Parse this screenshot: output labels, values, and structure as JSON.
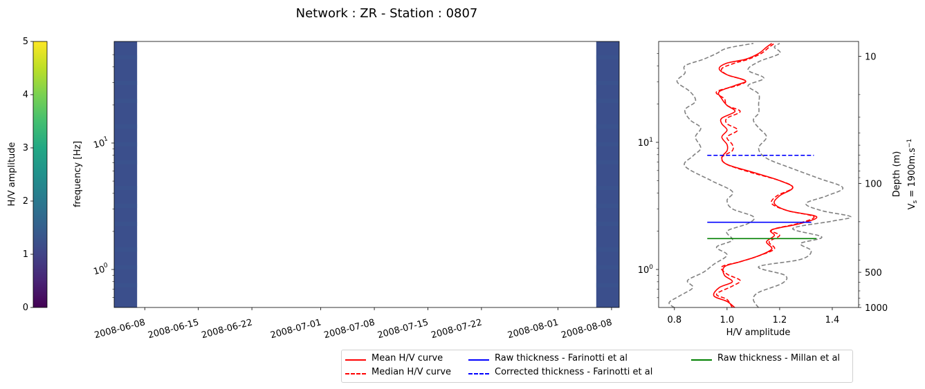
{
  "title": "Network : ZR - Station : 0807",
  "colors": {
    "mean": "#ff0000",
    "median": "#ff0000",
    "std": "#808080",
    "farinotti_raw": "#0000ff",
    "farinotti_corr": "#0000ff",
    "millan_raw": "#008000",
    "data_fill": "#3b4f8c"
  },
  "colorbar": {
    "label": "H/V amplitude",
    "ticks": [
      "0",
      "1",
      "2",
      "3",
      "4",
      "5"
    ],
    "range": [
      0,
      5
    ],
    "colormap": "viridis"
  },
  "spectrogram": {
    "ylabel": "frequency [Hz]",
    "ytick_major": [
      "10^0",
      "10^1"
    ],
    "ytick_base": "10",
    "ytick_exp": [
      "0",
      "1"
    ],
    "yscale": "log",
    "xticks": [
      "2008-06-08",
      "2008-06-15",
      "2008-06-22",
      "2008-07-01",
      "2008-07-08",
      "2008-07-15",
      "2008-07-22",
      "2008-08-01",
      "2008-08-08"
    ],
    "xlim": [
      "2008-06-04",
      "2008-08-09"
    ],
    "data_intervals": [
      [
        "2008-06-04",
        "2008-06-07"
      ],
      [
        "2008-08-06",
        "2008-08-09"
      ]
    ],
    "approx_hv_value": 1.0
  },
  "hv_panel": {
    "xlabel": "H/V amplitude",
    "xticks": [
      "0.8",
      "1.0",
      "1.2",
      "1.4"
    ],
    "xlim": [
      0.74,
      1.5
    ],
    "ylim_hz": [
      0.5,
      60
    ],
    "right_axis_label": "Depth (m)",
    "right_axis_label2_pre": "V",
    "right_axis_label2_sub": "s",
    "right_axis_label2_post": " = 1900m.s",
    "right_axis_label2_sup": "−1",
    "depth_ticks": [
      "10",
      "100",
      "500",
      "1000"
    ],
    "depth_tick_values": [
      10,
      100,
      500,
      1000
    ]
  },
  "legend": {
    "mean": "Mean H/V curve",
    "median": "Median H/V curve",
    "farinotti_raw": "Raw thickness - Farinotti et al",
    "farinotti_corr": "Corrected thickness - Farinotti et al",
    "millan_raw": "Raw thickness - Millan et al"
  },
  "chart_data": {
    "type": "line",
    "x_label": "H/V amplitude",
    "y_label": "frequency [Hz]",
    "y_scale": "log",
    "series": [
      {
        "name": "Mean H/V curve",
        "style": "solid",
        "points": [
          [
            1.03,
            0.5
          ],
          [
            1.0,
            0.56
          ],
          [
            0.95,
            0.62
          ],
          [
            0.97,
            0.72
          ],
          [
            1.02,
            0.8
          ],
          [
            0.99,
            0.9
          ],
          [
            0.99,
            1.05
          ],
          [
            1.05,
            1.15
          ],
          [
            1.12,
            1.28
          ],
          [
            1.17,
            1.45
          ],
          [
            1.15,
            1.65
          ],
          [
            1.18,
            1.85
          ],
          [
            1.17,
            2.05
          ],
          [
            1.28,
            2.3
          ],
          [
            1.34,
            2.6
          ],
          [
            1.23,
            2.9
          ],
          [
            1.18,
            3.3
          ],
          [
            1.2,
            3.8
          ],
          [
            1.25,
            4.4
          ],
          [
            1.2,
            5.0
          ],
          [
            1.1,
            5.8
          ],
          [
            1.0,
            6.7
          ],
          [
            0.98,
            7.6
          ],
          [
            1.0,
            8.6
          ],
          [
            1.0,
            9.6
          ],
          [
            0.98,
            11.0
          ],
          [
            1.0,
            12.5
          ],
          [
            0.98,
            14.0
          ],
          [
            0.98,
            15.5
          ],
          [
            1.03,
            17.5
          ],
          [
            1.0,
            19.5
          ],
          [
            0.98,
            22.0
          ],
          [
            0.97,
            25.0
          ],
          [
            1.03,
            28.0
          ],
          [
            1.07,
            30.5
          ],
          [
            1.0,
            34.0
          ],
          [
            0.97,
            38.0
          ],
          [
            1.0,
            42.0
          ],
          [
            1.07,
            45.0
          ],
          [
            1.12,
            50.0
          ],
          [
            1.15,
            56.0
          ],
          [
            1.17,
            60.0
          ]
        ]
      },
      {
        "name": "Median H/V curve",
        "style": "dashed",
        "points": [
          [
            1.02,
            0.5
          ],
          [
            1.0,
            0.58
          ],
          [
            0.96,
            0.64
          ],
          [
            1.02,
            0.74
          ],
          [
            1.05,
            0.82
          ],
          [
            1.0,
            0.92
          ],
          [
            0.98,
            1.05
          ],
          [
            1.05,
            1.15
          ],
          [
            1.12,
            1.28
          ],
          [
            1.18,
            1.45
          ],
          [
            1.16,
            1.65
          ],
          [
            1.2,
            1.85
          ],
          [
            1.17,
            2.05
          ],
          [
            1.27,
            2.3
          ],
          [
            1.33,
            2.6
          ],
          [
            1.23,
            2.9
          ],
          [
            1.17,
            3.3
          ],
          [
            1.19,
            3.8
          ],
          [
            1.25,
            4.4
          ],
          [
            1.2,
            5.0
          ],
          [
            1.09,
            5.8
          ],
          [
            1.0,
            6.7
          ],
          [
            0.98,
            7.6
          ],
          [
            1.02,
            8.6
          ],
          [
            1.02,
            9.6
          ],
          [
            1.0,
            11.0
          ],
          [
            1.04,
            12.5
          ],
          [
            1.0,
            14.0
          ],
          [
            1.0,
            15.5
          ],
          [
            1.05,
            17.5
          ],
          [
            1.0,
            19.5
          ],
          [
            0.99,
            22.0
          ],
          [
            0.96,
            25.0
          ],
          [
            1.04,
            28.0
          ],
          [
            1.07,
            30.5
          ],
          [
            1.0,
            34.0
          ],
          [
            0.98,
            38.0
          ],
          [
            1.03,
            42.0
          ],
          [
            1.08,
            45.0
          ],
          [
            1.13,
            50.0
          ],
          [
            1.16,
            56.0
          ],
          [
            1.18,
            60.0
          ]
        ]
      },
      {
        "name": "Std lower",
        "style": "dashed",
        "points": [
          [
            0.8,
            0.5
          ],
          [
            0.78,
            0.55
          ],
          [
            0.82,
            0.62
          ],
          [
            0.87,
            0.72
          ],
          [
            0.85,
            0.82
          ],
          [
            0.91,
            0.95
          ],
          [
            0.95,
            1.1
          ],
          [
            1.0,
            1.3
          ],
          [
            0.96,
            1.5
          ],
          [
            1.02,
            1.7
          ],
          [
            1.0,
            2.0
          ],
          [
            1.08,
            2.3
          ],
          [
            1.1,
            2.6
          ],
          [
            1.02,
            3.0
          ],
          [
            1.0,
            3.5
          ],
          [
            1.02,
            4.1
          ],
          [
            0.94,
            5.0
          ],
          [
            0.84,
            6.5
          ],
          [
            0.87,
            7.8
          ],
          [
            0.9,
            9.0
          ],
          [
            0.88,
            11.0
          ],
          [
            0.9,
            13.0
          ],
          [
            0.86,
            15.0
          ],
          [
            0.84,
            18.0
          ],
          [
            0.88,
            21.0
          ],
          [
            0.86,
            25.0
          ],
          [
            0.81,
            30.0
          ],
          [
            0.84,
            35.0
          ],
          [
            0.84,
            40.0
          ],
          [
            0.91,
            45.0
          ],
          [
            0.96,
            50.0
          ],
          [
            1.0,
            55.0
          ],
          [
            1.1,
            60.0
          ]
        ]
      },
      {
        "name": "Std upper",
        "style": "dashed",
        "points": [
          [
            1.12,
            0.5
          ],
          [
            1.1,
            0.58
          ],
          [
            1.12,
            0.66
          ],
          [
            1.21,
            0.78
          ],
          [
            1.22,
            0.9
          ],
          [
            1.12,
            1.05
          ],
          [
            1.28,
            1.2
          ],
          [
            1.32,
            1.4
          ],
          [
            1.28,
            1.6
          ],
          [
            1.36,
            1.8
          ],
          [
            1.25,
            2.1
          ],
          [
            1.4,
            2.4
          ],
          [
            1.47,
            2.6
          ],
          [
            1.36,
            2.9
          ],
          [
            1.3,
            3.3
          ],
          [
            1.38,
            3.8
          ],
          [
            1.44,
            4.4
          ],
          [
            1.35,
            5.2
          ],
          [
            1.25,
            6.2
          ],
          [
            1.15,
            7.5
          ],
          [
            1.12,
            9.0
          ],
          [
            1.15,
            11.0
          ],
          [
            1.12,
            13.0
          ],
          [
            1.1,
            15.0
          ],
          [
            1.12,
            17.0
          ],
          [
            1.12,
            20.0
          ],
          [
            1.12,
            24.0
          ],
          [
            1.08,
            28.0
          ],
          [
            1.14,
            32.0
          ],
          [
            1.08,
            37.0
          ],
          [
            1.12,
            43.0
          ],
          [
            1.2,
            50.0
          ],
          [
            1.18,
            56.0
          ],
          [
            1.2,
            60.0
          ]
        ]
      },
      {
        "name": "Raw thickness - Farinotti et al",
        "style": "solid",
        "points": [
          [
            0.925,
            2.35
          ],
          [
            1.32,
            2.35
          ]
        ]
      },
      {
        "name": "Corrected thickness - Farinotti et al",
        "style": "dashed",
        "points": [
          [
            0.925,
            7.9
          ],
          [
            1.33,
            7.9
          ]
        ]
      },
      {
        "name": "Raw thickness - Millan et al",
        "style": "solid",
        "points": [
          [
            0.925,
            1.75
          ],
          [
            1.34,
            1.75
          ]
        ]
      }
    ]
  }
}
